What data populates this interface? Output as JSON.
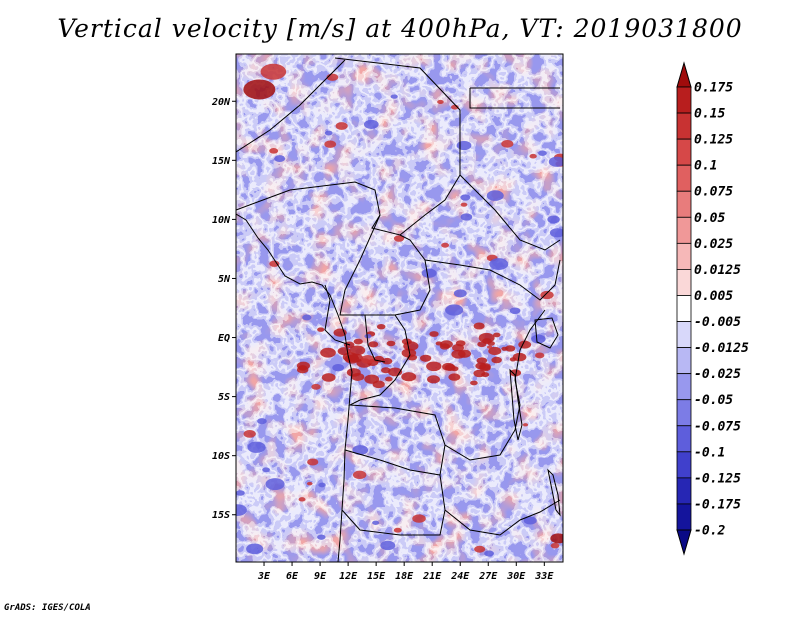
{
  "title": "Vertical velocity [m/s] at 400hPa, VT: 2019031800",
  "footer": "GrADS: IGES/COLA",
  "map": {
    "lon_range": [
      0,
      35
    ],
    "lat_range": [
      -19,
      24
    ],
    "lat_ticks": [
      {
        "value": 20,
        "label": "20N"
      },
      {
        "value": 15,
        "label": "15N"
      },
      {
        "value": 10,
        "label": "10N"
      },
      {
        "value": 5,
        "label": "5N"
      },
      {
        "value": 0,
        "label": "EQ"
      },
      {
        "value": -5,
        "label": "5S"
      },
      {
        "value": -10,
        "label": "10S"
      },
      {
        "value": -15,
        "label": "15S"
      }
    ],
    "lon_ticks": [
      {
        "value": 3,
        "label": "3E"
      },
      {
        "value": 6,
        "label": "6E"
      },
      {
        "value": 9,
        "label": "9E"
      },
      {
        "value": 12,
        "label": "12E"
      },
      {
        "value": 15,
        "label": "15E"
      },
      {
        "value": 18,
        "label": "18E"
      },
      {
        "value": 21,
        "label": "21E"
      },
      {
        "value": 24,
        "label": "24E"
      },
      {
        "value": 27,
        "label": "27E"
      },
      {
        "value": 30,
        "label": "30E"
      },
      {
        "value": 33,
        "label": "33E"
      }
    ]
  },
  "colorbar": {
    "labels": [
      "0.175",
      "0.15",
      "0.125",
      "0.1",
      "0.075",
      "0.05",
      "0.025",
      "0.0125",
      "0.005",
      "-0.005",
      "-0.0125",
      "-0.025",
      "-0.05",
      "-0.075",
      "-0.1",
      "-0.125",
      "-0.175",
      "-0.2"
    ],
    "colors": [
      "#a00c0c",
      "#b81e1e",
      "#c83232",
      "#d64848",
      "#e06060",
      "#e87c7c",
      "#f09898",
      "#f6b8b8",
      "#fad8d8",
      "#ffffff",
      "#d8d8fa",
      "#b8b8f4",
      "#9898ee",
      "#7c7ce6",
      "#5e5edc",
      "#4040cc",
      "#2626b4",
      "#14149c",
      "#0a0a86"
    ]
  }
}
